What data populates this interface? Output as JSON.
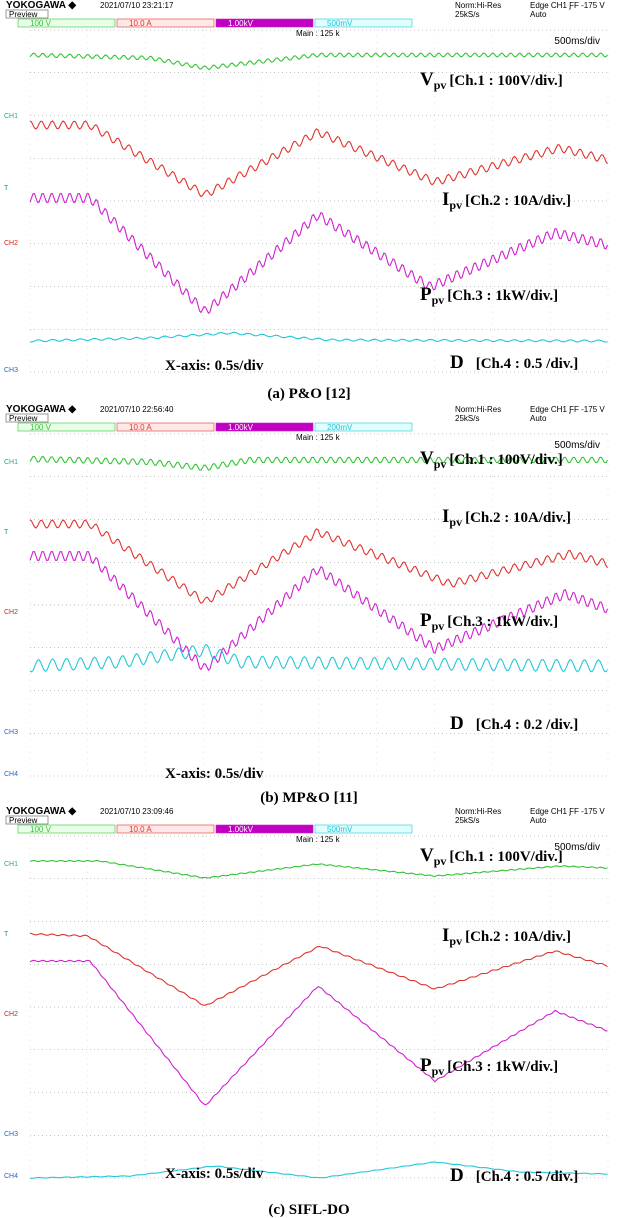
{
  "panels": [
    {
      "brand": "YOKOGAWA ◆",
      "timestamp": "2021/07/10 23:21:17",
      "mode": "Preview",
      "acquisition": "Norm:Hi-Res",
      "rate": "25kS/s",
      "trigger": "Edge CH1 ƑF -175 V",
      "trigger_mode": "Auto",
      "channels": [
        "100 V",
        "10.0 A",
        "1.00kV",
        "500mV"
      ],
      "main": "Main : 125 k",
      "timebase": "500ms/div",
      "markers": [
        "CH1",
        "T",
        "CH2",
        "CH3"
      ],
      "labels": [
        {
          "symbol": "V",
          "sub": "pv",
          "spec": "[Ch.1 :  100V/div.]"
        },
        {
          "symbol": "I",
          "sub": "pv",
          "spec": "[Ch.2 : 10A/div.]"
        },
        {
          "symbol": "P",
          "sub": "pv",
          "spec": "[Ch.3 : 1kW/div.]"
        },
        {
          "symbol": "D",
          "sub": "",
          "spec": "[Ch.4 : 0.5 /div.]"
        }
      ],
      "x_axis": "X-axis: 0.5s/div",
      "caption": "(a) P&O [12]"
    },
    {
      "brand": "YOKOGAWA ◆",
      "timestamp": "2021/07/10 22:56:40",
      "mode": "Preview",
      "acquisition": "Norm:Hi-Res",
      "rate": "25kS/s",
      "trigger": "Edge CH1 ƑF -175 V",
      "trigger_mode": "Auto",
      "channels": [
        "100 V",
        "10.0 A",
        "1.00kV",
        "200mV"
      ],
      "main": "Main : 125 k",
      "timebase": "500ms/div",
      "markers": [
        "CH1",
        "T",
        "CH2",
        "CH3",
        "CH4"
      ],
      "labels": [
        {
          "symbol": "V",
          "sub": "pv",
          "spec": "[Ch.1 :  100V/div.]"
        },
        {
          "symbol": "I",
          "sub": "pv",
          "spec": "[Ch.2 : 10A/div.]"
        },
        {
          "symbol": "P",
          "sub": "pv",
          "spec": "[Ch.3 : 1kW/div.]"
        },
        {
          "symbol": "D",
          "sub": "",
          "spec": "[Ch.4 : 0.2 /div.]"
        }
      ],
      "x_axis": "X-axis: 0.5s/div",
      "caption": "(b) MP&O [11]"
    },
    {
      "brand": "YOKOGAWA ◆",
      "timestamp": "2021/07/10 23:09:46",
      "mode": "Preview",
      "acquisition": "Norm:Hi-Res",
      "rate": "25kS/s",
      "trigger": "Edge CH1 ƑF -175 V",
      "trigger_mode": "Auto",
      "channels": [
        "100 V",
        "10.0 A",
        "1.00kV",
        "500mV"
      ],
      "main": "Main : 125 k",
      "timebase": "500ms/div",
      "markers": [
        "CH1",
        "T",
        "CH2",
        "CH3",
        "CH4"
      ],
      "labels": [
        {
          "symbol": "V",
          "sub": "pv",
          "spec": "[Ch.1 :  100V/div.]"
        },
        {
          "symbol": "I",
          "sub": "pv",
          "spec": "[Ch.2 : 10A/div.]"
        },
        {
          "symbol": "P",
          "sub": "pv",
          "spec": "[Ch.3 : 1kW/div.]"
        },
        {
          "symbol": "D",
          "sub": "",
          "spec": "[Ch.4 : 0.5 /div.]"
        }
      ],
      "x_axis": "X-axis: 0.5s/div",
      "caption": "(c) SIFL-DO"
    }
  ]
}
